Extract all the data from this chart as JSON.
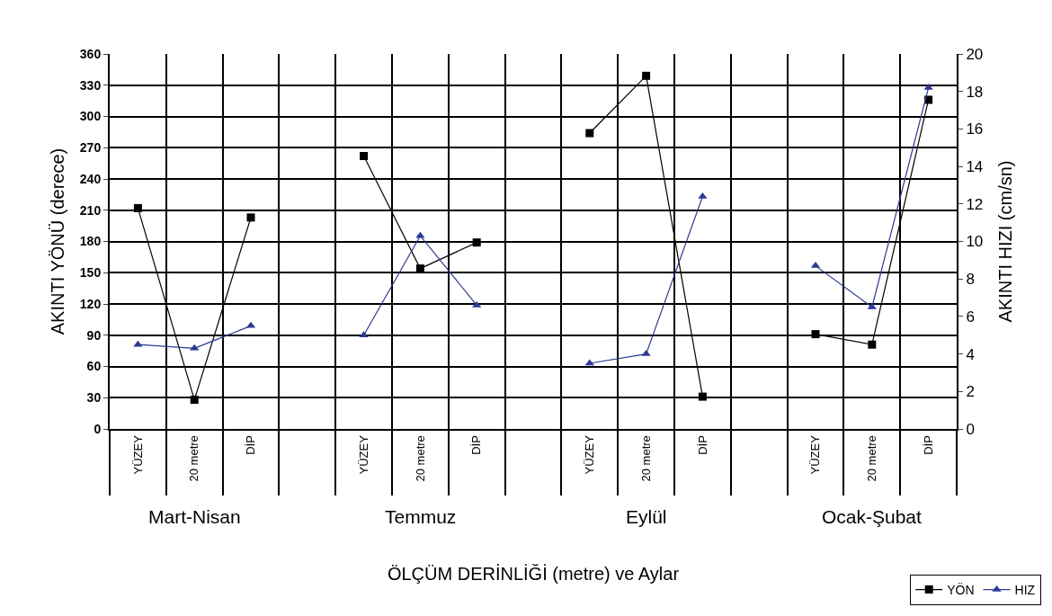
{
  "chart_data": {
    "type": "line",
    "xlabel": "ÖLÇÜM DERİNLİĞİ (metre) ve Aylar",
    "ylabel": "AKINTI YÖNÜ (derece)",
    "y2label": "AKINTI HIZI (cm/sn)",
    "categories": [
      "YÜZEY",
      "20 metre",
      "DİP",
      null,
      "YÜZEY",
      "20 metre",
      "DİP",
      null,
      "YÜZEY",
      "20 metre",
      "DİP",
      null,
      "YÜZEY",
      "20 metre",
      "DİP"
    ],
    "series": [
      {
        "name": "YÖN",
        "color": "#000000",
        "marker": "square",
        "values": [
          212,
          28,
          203,
          null,
          262,
          154,
          179,
          null,
          284,
          339,
          31,
          null,
          91,
          81,
          316
        ]
      },
      {
        "name": "HIZ",
        "color": "#2b3a96",
        "marker": "triangle",
        "axis": "y2",
        "values": [
          4.5,
          4.3,
          5.5,
          null,
          5.0,
          10.3,
          6.6,
          null,
          3.5,
          4.0,
          12.4,
          null,
          8.7,
          6.5,
          18.2
        ]
      }
    ],
    "annotations": [
      "Mart-Nisan",
      "Temmuz",
      "Eylül",
      "Ocak-Şubat"
    ],
    "ylim": [
      0,
      360
    ],
    "yticks": [
      0,
      30,
      60,
      90,
      120,
      150,
      180,
      210,
      240,
      270,
      300,
      330,
      360
    ],
    "y2lim": [
      0,
      20
    ],
    "y2ticks": [
      0,
      2,
      4,
      6,
      8,
      10,
      12,
      14,
      16,
      18,
      20
    ],
    "grid": true,
    "legend": "bottom right"
  }
}
